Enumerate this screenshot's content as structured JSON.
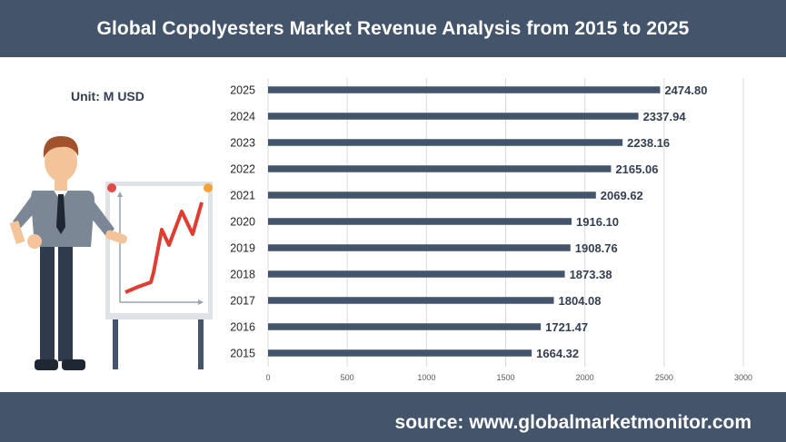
{
  "header": {
    "title": "Global Copolyesters Market Revenue Analysis from 2015 to 2025"
  },
  "unit_label": "Unit: M USD",
  "footer": {
    "source": "source: www.globalmarketmonitor.com"
  },
  "colors": {
    "header_bg": "#44546a",
    "bar": "#44546a",
    "label": "#333f50",
    "grid": "#d9d9d9"
  },
  "illustration": {
    "name": "presenter-with-growth-chart-icon"
  },
  "chart_data": {
    "type": "bar",
    "orientation": "horizontal",
    "title": "Global Copolyesters Market Revenue Analysis from 2015 to 2025",
    "xlabel": "",
    "ylabel": "",
    "categories": [
      "2025",
      "2024",
      "2023",
      "2022",
      "2021",
      "2020",
      "2019",
      "2018",
      "2017",
      "2016",
      "2015"
    ],
    "values": [
      2474.8,
      2337.94,
      2238.16,
      2165.06,
      2069.62,
      1916.1,
      1908.76,
      1873.38,
      1804.08,
      1721.47,
      1664.32
    ],
    "value_labels": [
      "2474.80",
      "2337.94",
      "2238.16",
      "2165.06",
      "2069.62",
      "1916.10",
      "1908.76",
      "1873.38",
      "1804.08",
      "1721.47",
      "1664.32"
    ],
    "xlim": [
      0,
      3000
    ],
    "xticks": [
      0,
      500,
      1000,
      1500,
      2000,
      2500,
      3000
    ],
    "grid": true,
    "legend": "none"
  }
}
